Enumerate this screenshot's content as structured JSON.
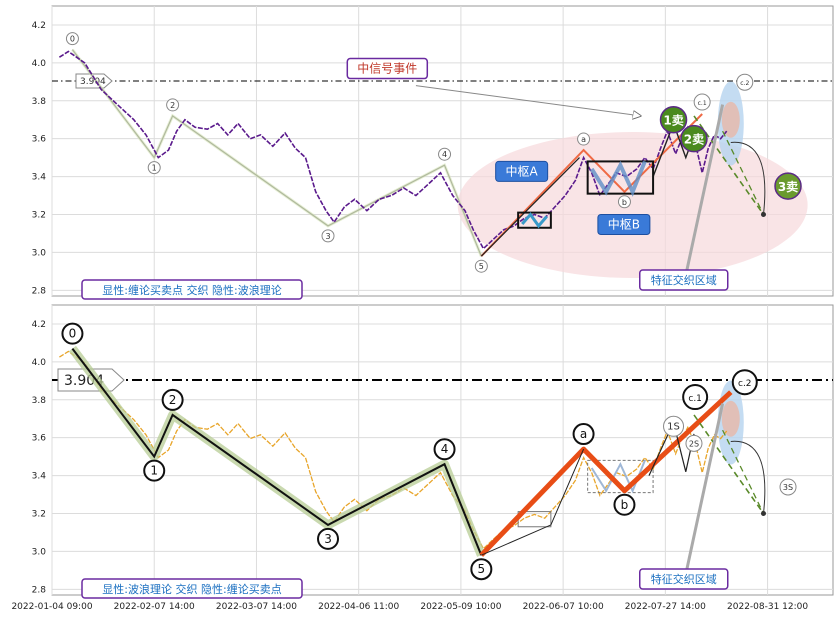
{
  "chart_data": [
    {
      "type": "line",
      "panel": "top",
      "ylim": [
        2.77,
        4.3
      ],
      "yticks": [
        2.8,
        3.0,
        3.2,
        3.4,
        3.6,
        3.8,
        4.0,
        4.2
      ],
      "ref_line": {
        "value": 3.904,
        "label": "3.904"
      },
      "price_color": "#5a1a8c",
      "price": [
        [
          0.18,
          4.03
        ],
        [
          0.4,
          4.06
        ],
        [
          0.8,
          4.0
        ],
        [
          1.2,
          3.86
        ],
        [
          1.6,
          3.78
        ],
        [
          2.0,
          3.7
        ],
        [
          2.3,
          3.62
        ],
        [
          2.6,
          3.5
        ],
        [
          2.85,
          3.54
        ],
        [
          3.05,
          3.64
        ],
        [
          3.25,
          3.7
        ],
        [
          3.5,
          3.66
        ],
        [
          3.8,
          3.65
        ],
        [
          4.05,
          3.68
        ],
        [
          4.3,
          3.62
        ],
        [
          4.55,
          3.68
        ],
        [
          4.85,
          3.6
        ],
        [
          5.1,
          3.62
        ],
        [
          5.4,
          3.56
        ],
        [
          5.7,
          3.63
        ],
        [
          5.95,
          3.55
        ],
        [
          6.2,
          3.5
        ],
        [
          6.45,
          3.32
        ],
        [
          6.7,
          3.22
        ],
        [
          6.9,
          3.16
        ],
        [
          7.15,
          3.24
        ],
        [
          7.4,
          3.28
        ],
        [
          7.7,
          3.22
        ],
        [
          8.0,
          3.28
        ],
        [
          8.3,
          3.3
        ],
        [
          8.6,
          3.34
        ],
        [
          8.9,
          3.3
        ],
        [
          9.2,
          3.36
        ],
        [
          9.5,
          3.42
        ],
        [
          9.8,
          3.3
        ],
        [
          10.1,
          3.22
        ],
        [
          10.3,
          3.12
        ],
        [
          10.55,
          3.02
        ],
        [
          10.8,
          3.07
        ],
        [
          11.05,
          3.12
        ],
        [
          11.3,
          3.14
        ],
        [
          11.55,
          3.18
        ],
        [
          11.8,
          3.2
        ],
        [
          12.05,
          3.18
        ],
        [
          12.3,
          3.24
        ],
        [
          12.55,
          3.3
        ],
        [
          12.8,
          3.38
        ],
        [
          13.0,
          3.5
        ],
        [
          13.2,
          3.42
        ],
        [
          13.4,
          3.3
        ],
        [
          13.6,
          3.36
        ],
        [
          13.8,
          3.42
        ],
        [
          14.05,
          3.4
        ],
        [
          14.3,
          3.44
        ],
        [
          14.5,
          3.5
        ],
        [
          14.7,
          3.44
        ],
        [
          14.9,
          3.56
        ],
        [
          15.05,
          3.64
        ],
        [
          15.25,
          3.52
        ],
        [
          15.4,
          3.6
        ],
        [
          15.55,
          3.66
        ],
        [
          15.75,
          3.56
        ],
        [
          15.9,
          3.42
        ],
        [
          16.05,
          3.55
        ],
        [
          16.2,
          3.62
        ],
        [
          16.35,
          3.6
        ],
        [
          16.5,
          3.64
        ]
      ],
      "wave_points": [
        {
          "label": "0",
          "x": 0.5,
          "y": 4.07
        },
        {
          "label": "1",
          "x": 2.5,
          "y": 3.5
        },
        {
          "label": "2",
          "x": 2.95,
          "y": 3.72
        },
        {
          "label": "3",
          "x": 6.75,
          "y": 3.14
        },
        {
          "label": "4",
          "x": 9.6,
          "y": 3.46
        },
        {
          "label": "5",
          "x": 10.5,
          "y": 2.98
        },
        {
          "label": "a",
          "x": 13.0,
          "y": 3.54
        },
        {
          "label": "b",
          "x": 14.0,
          "y": 3.32
        },
        {
          "label": "c.1",
          "x": 15.9,
          "y": 3.73
        },
        {
          "label": "c.2",
          "x": 16.6,
          "y": 3.84
        }
      ],
      "red_line": [
        [
          10.5,
          2.98
        ],
        [
          13.0,
          3.54
        ],
        [
          14.0,
          3.32
        ],
        [
          15.9,
          3.73
        ]
      ],
      "green_dash": [
        [
          15.7,
          3.72
        ],
        [
          17.4,
          3.2
        ]
      ],
      "zhongshu": [
        {
          "label": "中枢A",
          "x0": 11.4,
          "x1": 12.2,
          "y0": 3.13,
          "y1": 3.21
        },
        {
          "label": "中枢B",
          "x0": 13.1,
          "x1": 14.7,
          "y0": 3.31,
          "y1": 3.48
        }
      ],
      "signals": [
        {
          "label": "1卖",
          "x": 15.2,
          "y": 3.7,
          "color": "#4a8a1e"
        },
        {
          "label": "2卖",
          "x": 15.7,
          "y": 3.6,
          "color": "#4a8a1e"
        },
        {
          "label": "3卖",
          "x": 18.0,
          "y": 3.35,
          "color": "#6a9a2e"
        }
      ],
      "annotations": {
        "event": "中信号事件",
        "region": "特征交织区域",
        "legend": "显性:缠论买卖点 交织 隐性:波浪理论"
      }
    },
    {
      "type": "line",
      "panel": "bottom",
      "ylim": [
        2.77,
        4.3
      ],
      "yticks": [
        2.8,
        3.0,
        3.2,
        3.4,
        3.6,
        3.8,
        4.0,
        4.2
      ],
      "ref_line": {
        "value": 3.904,
        "label": "3.904"
      },
      "price_color": "#e8a52a",
      "xticks": [
        {
          "x": 0,
          "label": "2022-01-04 09:00"
        },
        {
          "x": 2.5,
          "label": "2022-02-07 14:00"
        },
        {
          "x": 5.0,
          "label": "2022-03-07 14:00"
        },
        {
          "x": 7.5,
          "label": "2022-04-06 11:00"
        },
        {
          "x": 10.0,
          "label": "2022-05-09 10:00"
        },
        {
          "x": 12.5,
          "label": "2022-06-07 10:00"
        },
        {
          "x": 15.0,
          "label": "2022-07-27 14:00"
        },
        {
          "x": 17.5,
          "label": "2022-08-31 12:00"
        }
      ],
      "wave_points": [
        {
          "label": "0",
          "x": 0.5,
          "y": 4.07
        },
        {
          "label": "1",
          "x": 2.5,
          "y": 3.5
        },
        {
          "label": "2",
          "x": 2.95,
          "y": 3.72
        },
        {
          "label": "3",
          "x": 6.75,
          "y": 3.14
        },
        {
          "label": "4",
          "x": 9.6,
          "y": 3.46
        },
        {
          "label": "5",
          "x": 10.5,
          "y": 2.98
        },
        {
          "label": "a",
          "x": 13.0,
          "y": 3.54
        },
        {
          "label": "b",
          "x": 14.0,
          "y": 3.32
        },
        {
          "label": "c.1",
          "x": 15.9,
          "y": 3.73
        },
        {
          "label": "c.2",
          "x": 16.6,
          "y": 3.84
        }
      ],
      "signals": [
        {
          "label": "1S",
          "x": 15.2,
          "y": 3.66
        },
        {
          "label": "2S",
          "x": 15.7,
          "y": 3.57
        },
        {
          "label": "3S",
          "x": 18.0,
          "y": 3.34
        }
      ],
      "annotations": {
        "region": "特征交织区域",
        "legend": "显性:波浪理论 交织 隐性:缠论买卖点"
      }
    }
  ]
}
